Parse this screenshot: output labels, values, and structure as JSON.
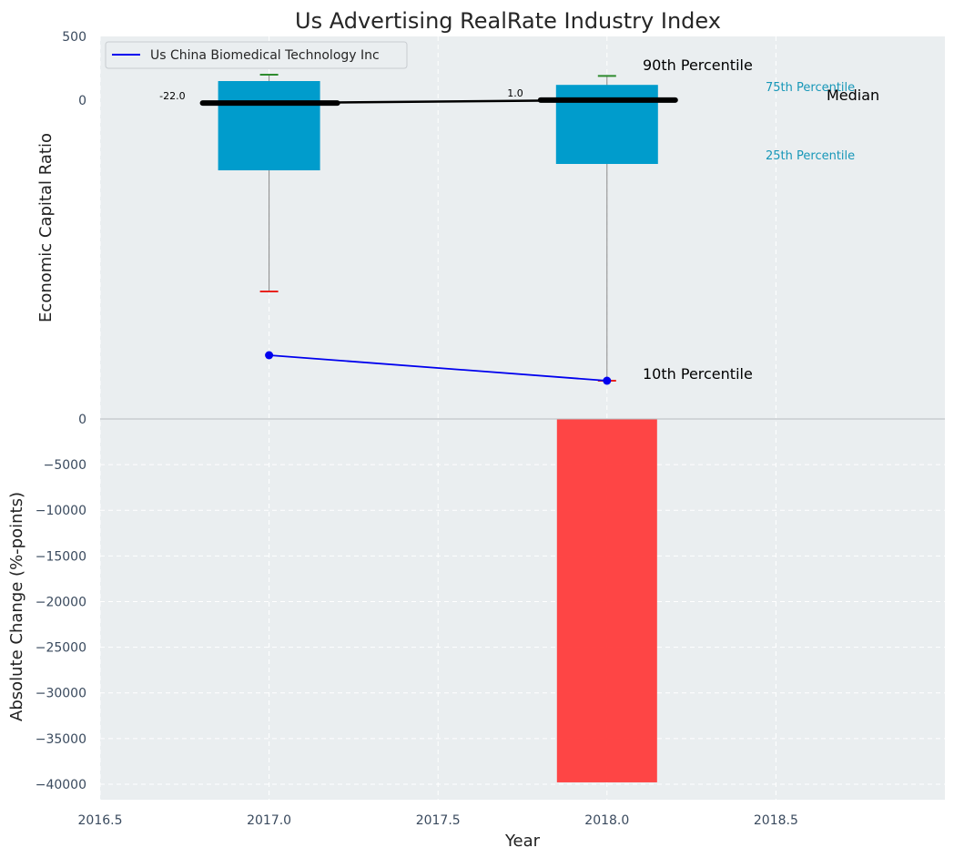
{
  "chart_data": {
    "type": "bar",
    "title": "Us Advertising RealRate Industry Index",
    "xlabel": "Year",
    "x_range": [
      2016.5,
      2019.0
    ],
    "x_ticks": [
      "2016.5",
      "2017.0",
      "2017.5",
      "2018.0",
      "2018.5"
    ],
    "grid": true,
    "legend_placement": "top-left",
    "top_panel": {
      "ylabel": "Economic Capital Ratio",
      "y_ticks": [
        "500",
        "0"
      ],
      "ylim": [
        -2500,
        500
      ],
      "box_color": "#009ccc",
      "boxes": [
        {
          "x": 2017.0,
          "q25": -550,
          "q75": 150,
          "p10": -1500,
          "p90": 200,
          "median": -22.0,
          "median_label": "-22.0"
        },
        {
          "x": 2018.0,
          "q25": -500,
          "q75": 120,
          "p10": -2200,
          "p90": 190,
          "median": 1.0,
          "median_label": "1.0"
        }
      ],
      "series": [
        {
          "name": "Us China Biomedical Technology Inc",
          "color": "#0000ee",
          "x": [
            2017.0,
            2018.0
          ],
          "y": [
            -2000,
            -2200
          ]
        }
      ],
      "annotations": {
        "p90": "90th Percentile",
        "p75": "75th Percentile",
        "median": "Median",
        "p25": "25th Percentile",
        "p10": "10th Percentile"
      }
    },
    "bottom_panel": {
      "ylabel": "Absolute Change (%-points)",
      "y_ticks": [
        "0",
        "−5000",
        "−10000",
        "−15000",
        "−20000",
        "−25000",
        "−30000",
        "−35000",
        "−40000"
      ],
      "ylim": [
        -41700,
        0
      ],
      "bar_color": "#ff3b3b",
      "bars": [
        {
          "x": 2018.0,
          "value": -39800
        }
      ]
    },
    "colors": {
      "plot_bg": "#eaeef0",
      "p90_cap": "#2e8b2e",
      "p10_cap": "#e8231e",
      "whisker": "#888888",
      "median_line": "#000000"
    }
  }
}
